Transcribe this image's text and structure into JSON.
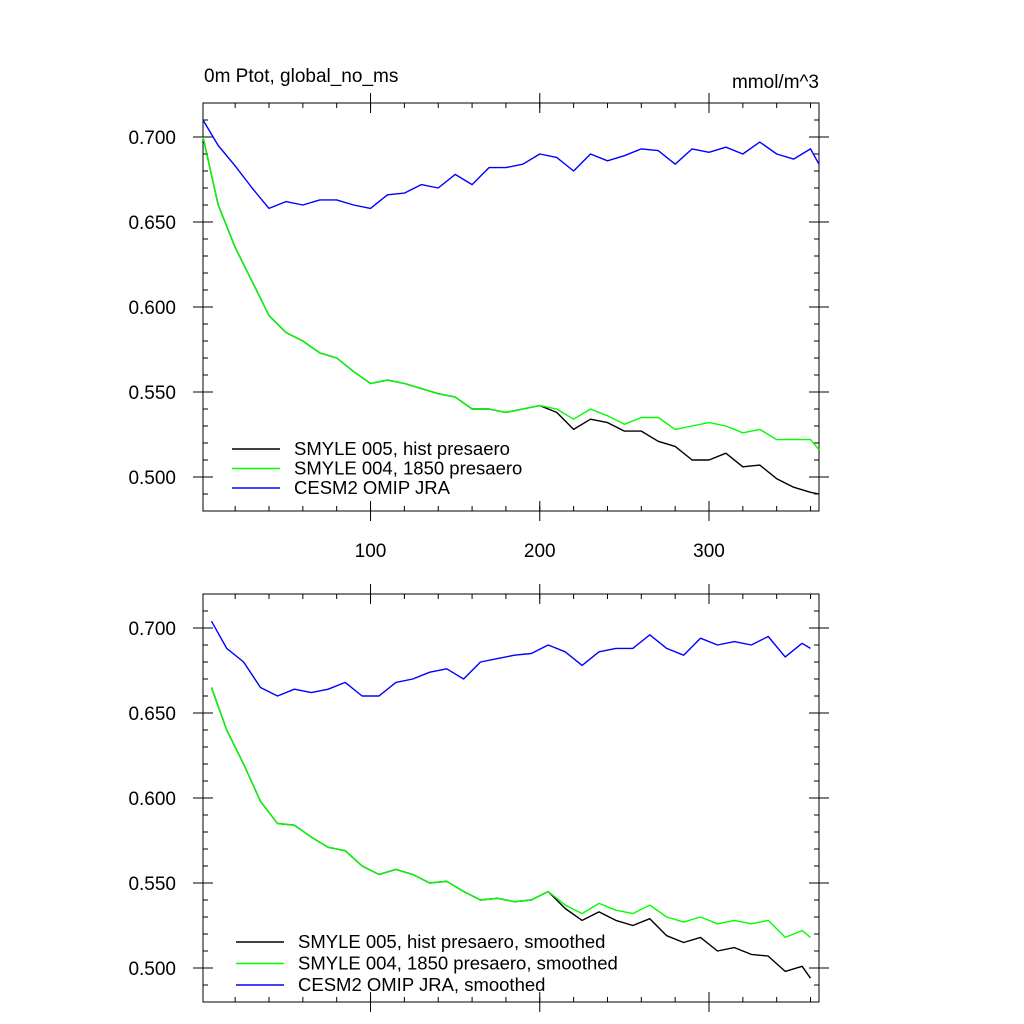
{
  "chart_data": [
    {
      "type": "line",
      "title": "0m Ptot, global_no_ms",
      "units": "mmol/m^3",
      "xlim": [
        1,
        365
      ],
      "ylim": [
        0.48,
        0.72
      ],
      "x_ticks": [
        100,
        200,
        300
      ],
      "x_tick_labels": [
        "100",
        "200",
        "300"
      ],
      "y_ticks": [
        0.5,
        0.55,
        0.6,
        0.65,
        0.7
      ],
      "y_tick_labels": [
        "0.500",
        "0.550",
        "0.600",
        "0.650",
        "0.700"
      ],
      "legend_position": "bottom-left",
      "series": [
        {
          "name": "SMYLE 005, hist presaero",
          "color": "#000000",
          "x": [
            1,
            10,
            20,
            30,
            40,
            50,
            60,
            70,
            80,
            90,
            100,
            110,
            120,
            130,
            140,
            150,
            160,
            170,
            180,
            190,
            200,
            210,
            220,
            230,
            240,
            250,
            260,
            270,
            280,
            290,
            300,
            310,
            320,
            330,
            340,
            350,
            360,
            365
          ],
          "y": [
            0.7,
            0.66,
            0.635,
            0.615,
            0.595,
            0.585,
            0.58,
            0.573,
            0.57,
            0.562,
            0.555,
            0.557,
            0.555,
            0.552,
            0.549,
            0.547,
            0.54,
            0.54,
            0.538,
            0.54,
            0.542,
            0.538,
            0.528,
            0.534,
            0.532,
            0.527,
            0.527,
            0.521,
            0.518,
            0.51,
            0.51,
            0.514,
            0.506,
            0.507,
            0.499,
            0.494,
            0.491,
            0.49
          ]
        },
        {
          "name": "SMYLE 004, 1850 presaero",
          "color": "#00ff00",
          "x": [
            1,
            10,
            20,
            30,
            40,
            50,
            60,
            70,
            80,
            90,
            100,
            110,
            120,
            130,
            140,
            150,
            160,
            170,
            180,
            190,
            200,
            210,
            220,
            230,
            240,
            250,
            260,
            270,
            280,
            290,
            300,
            310,
            320,
            330,
            340,
            350,
            360,
            365
          ],
          "y": [
            0.7,
            0.66,
            0.635,
            0.615,
            0.595,
            0.585,
            0.58,
            0.573,
            0.57,
            0.562,
            0.555,
            0.557,
            0.555,
            0.552,
            0.549,
            0.547,
            0.54,
            0.54,
            0.538,
            0.54,
            0.542,
            0.54,
            0.534,
            0.54,
            0.536,
            0.531,
            0.535,
            0.535,
            0.528,
            0.53,
            0.532,
            0.53,
            0.526,
            0.528,
            0.522,
            0.522,
            0.522,
            0.516
          ]
        },
        {
          "name": "CESM2 OMIP JRA",
          "color": "#0000ff",
          "x": [
            1,
            10,
            20,
            30,
            40,
            50,
            60,
            70,
            80,
            90,
            100,
            110,
            120,
            130,
            140,
            150,
            160,
            170,
            180,
            190,
            200,
            210,
            220,
            230,
            240,
            250,
            260,
            270,
            280,
            290,
            300,
            310,
            320,
            330,
            340,
            350,
            360,
            365
          ],
          "y": [
            0.71,
            0.695,
            0.683,
            0.67,
            0.658,
            0.662,
            0.66,
            0.663,
            0.663,
            0.66,
            0.658,
            0.666,
            0.667,
            0.672,
            0.67,
            0.678,
            0.672,
            0.682,
            0.682,
            0.684,
            0.69,
            0.688,
            0.68,
            0.69,
            0.686,
            0.689,
            0.693,
            0.692,
            0.684,
            0.693,
            0.691,
            0.694,
            0.69,
            0.697,
            0.69,
            0.687,
            0.693,
            0.684
          ]
        }
      ]
    },
    {
      "type": "line",
      "xlim": [
        1,
        365
      ],
      "ylim": [
        0.48,
        0.72
      ],
      "x_ticks": [
        100,
        200,
        300
      ],
      "y_ticks": [
        0.5,
        0.55,
        0.6,
        0.65,
        0.7
      ],
      "y_tick_labels": [
        "0.500",
        "0.550",
        "0.600",
        "0.650",
        "0.700"
      ],
      "legend_position": "bottom-left",
      "series": [
        {
          "name": "SMYLE 005, hist presaero, smoothed",
          "color": "#000000",
          "x": [
            6,
            15,
            25,
            35,
            45,
            55,
            65,
            75,
            85,
            95,
            105,
            115,
            125,
            135,
            145,
            155,
            165,
            175,
            185,
            195,
            205,
            215,
            225,
            235,
            245,
            255,
            265,
            275,
            285,
            295,
            305,
            315,
            325,
            335,
            345,
            355,
            360
          ],
          "y": [
            0.665,
            0.64,
            0.62,
            0.598,
            0.585,
            0.584,
            0.577,
            0.571,
            0.569,
            0.56,
            0.555,
            0.558,
            0.555,
            0.55,
            0.551,
            0.545,
            0.54,
            0.541,
            0.539,
            0.54,
            0.545,
            0.535,
            0.528,
            0.533,
            0.528,
            0.525,
            0.529,
            0.519,
            0.515,
            0.518,
            0.51,
            0.512,
            0.508,
            0.507,
            0.498,
            0.501,
            0.494
          ]
        },
        {
          "name": "SMYLE 004, 1850 presaero, smoothed",
          "color": "#00ff00",
          "x": [
            6,
            15,
            25,
            35,
            45,
            55,
            65,
            75,
            85,
            95,
            105,
            115,
            125,
            135,
            145,
            155,
            165,
            175,
            185,
            195,
            205,
            215,
            225,
            235,
            245,
            255,
            265,
            275,
            285,
            295,
            305,
            315,
            325,
            335,
            345,
            355,
            360
          ],
          "y": [
            0.665,
            0.64,
            0.62,
            0.598,
            0.585,
            0.584,
            0.577,
            0.571,
            0.569,
            0.56,
            0.555,
            0.558,
            0.555,
            0.55,
            0.551,
            0.545,
            0.54,
            0.541,
            0.539,
            0.54,
            0.545,
            0.537,
            0.532,
            0.538,
            0.534,
            0.532,
            0.537,
            0.53,
            0.527,
            0.53,
            0.526,
            0.528,
            0.526,
            0.528,
            0.518,
            0.522,
            0.518
          ]
        },
        {
          "name": "CESM2 OMIP JRA, smoothed",
          "color": "#0000ff",
          "x": [
            6,
            15,
            25,
            35,
            45,
            55,
            65,
            75,
            85,
            95,
            105,
            115,
            125,
            135,
            145,
            155,
            165,
            175,
            185,
            195,
            205,
            215,
            225,
            235,
            245,
            255,
            265,
            275,
            285,
            295,
            305,
            315,
            325,
            335,
            345,
            355,
            360
          ],
          "y": [
            0.704,
            0.688,
            0.68,
            0.665,
            0.66,
            0.664,
            0.662,
            0.664,
            0.668,
            0.66,
            0.66,
            0.668,
            0.67,
            0.674,
            0.676,
            0.67,
            0.68,
            0.682,
            0.684,
            0.685,
            0.69,
            0.686,
            0.678,
            0.686,
            0.688,
            0.688,
            0.696,
            0.688,
            0.684,
            0.694,
            0.69,
            0.692,
            0.69,
            0.695,
            0.683,
            0.691,
            0.688
          ]
        }
      ]
    }
  ]
}
